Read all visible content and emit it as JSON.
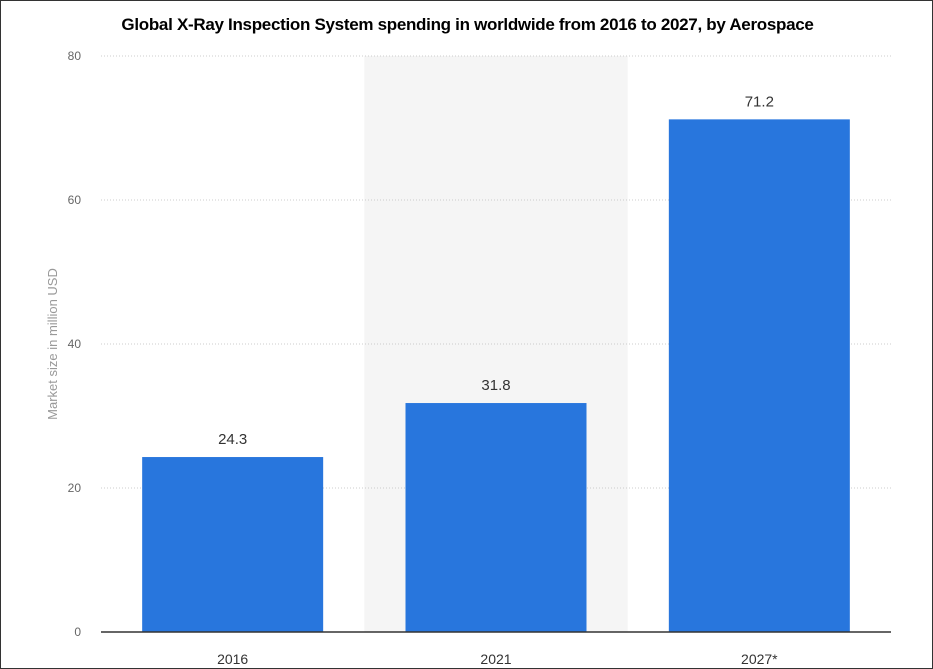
{
  "chart_data": {
    "type": "bar",
    "title": "Global X-Ray Inspection System spending in worldwide from 2016 to 2027, by Aerospace",
    "xlabel": "",
    "ylabel": "Market size in million USD",
    "categories": [
      "2016",
      "2021",
      "2027*"
    ],
    "values": [
      24.3,
      31.8,
      71.2
    ],
    "data_labels": [
      "24.3",
      "31.8",
      "71.2"
    ],
    "ylim": [
      0,
      80
    ],
    "yticks": [
      "0",
      "20",
      "40",
      "60",
      "80"
    ],
    "grid": true,
    "colors": {
      "bar": "#2876dd",
      "band_alt": "#f5f5f5",
      "gridline": "#cccccc",
      "baseline": "#333333"
    }
  }
}
